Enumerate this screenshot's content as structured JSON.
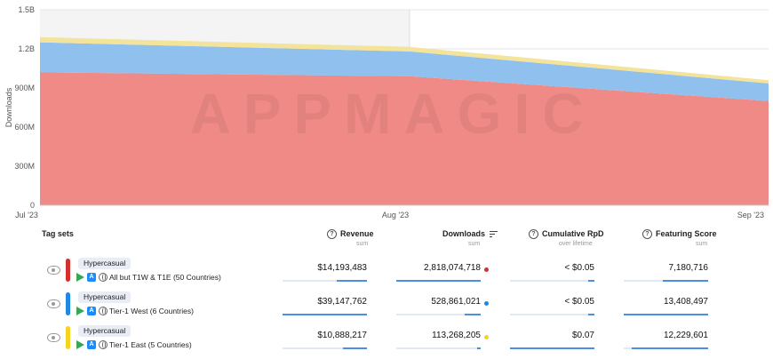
{
  "chart_data": {
    "type": "area",
    "stacked": true,
    "x": [
      "Jul '23",
      "Aug '23",
      "Sep '23"
    ],
    "ylabel": "Downloads",
    "y_ticks": [
      "0",
      "300M",
      "600M",
      "900M",
      "1.2B",
      "1.5B"
    ],
    "ylim": [
      0,
      1500000000
    ],
    "grid": true,
    "shaded_region": "Jul '23 – Aug '23",
    "series": [
      {
        "color": "#f08a87",
        "values": [
          1020000000,
          990000000,
          800000000
        ]
      },
      {
        "color": "#8fc0ee",
        "values": [
          230000000,
          190000000,
          135000000
        ]
      },
      {
        "color": "#f3e39b",
        "values": [
          40000000,
          35000000,
          25000000
        ]
      }
    ],
    "watermark": "APPMAGIC"
  },
  "table": {
    "headers": {
      "tag_sets": "Tag sets",
      "revenue": "Revenue",
      "revenue_sub": "sum",
      "downloads": "Downloads",
      "downloads_sub": "sum",
      "rpd": "Cumulative RpD",
      "rpd_sub": "over lifetime",
      "featuring": "Featuring Score",
      "featuring_sub": "sum"
    },
    "icons": {
      "help": "?",
      "store": "A"
    },
    "rows": [
      {
        "tag": "Hypercasual",
        "label": "All but T1W & T1E (50 Countries)",
        "color": "#d32f2f",
        "revenue": "$14,193,483",
        "revenue_frac": 0.36,
        "downloads": "2,818,074,718",
        "downloads_frac": 1.0,
        "rpd": "< $0.05",
        "rpd_frac": 0.07,
        "featuring": "7,180,716",
        "featuring_frac": 0.54
      },
      {
        "tag": "Hypercasual",
        "label": "Tier-1 West (6 Countries)",
        "color": "#1e88e5",
        "revenue": "$39,147,762",
        "revenue_frac": 1.0,
        "downloads": "528,861,021",
        "downloads_frac": 0.19,
        "rpd": "< $0.05",
        "rpd_frac": 0.07,
        "featuring": "13,408,497",
        "featuring_frac": 1.0
      },
      {
        "tag": "Hypercasual",
        "label": "Tier-1 East (5 Countries)",
        "color": "#f5d31e",
        "revenue": "$10,888,217",
        "revenue_frac": 0.28,
        "downloads": "113,268,205",
        "downloads_frac": 0.04,
        "rpd": "$0.07",
        "rpd_frac": 1.0,
        "featuring": "12,229,601",
        "featuring_frac": 0.91
      }
    ]
  }
}
